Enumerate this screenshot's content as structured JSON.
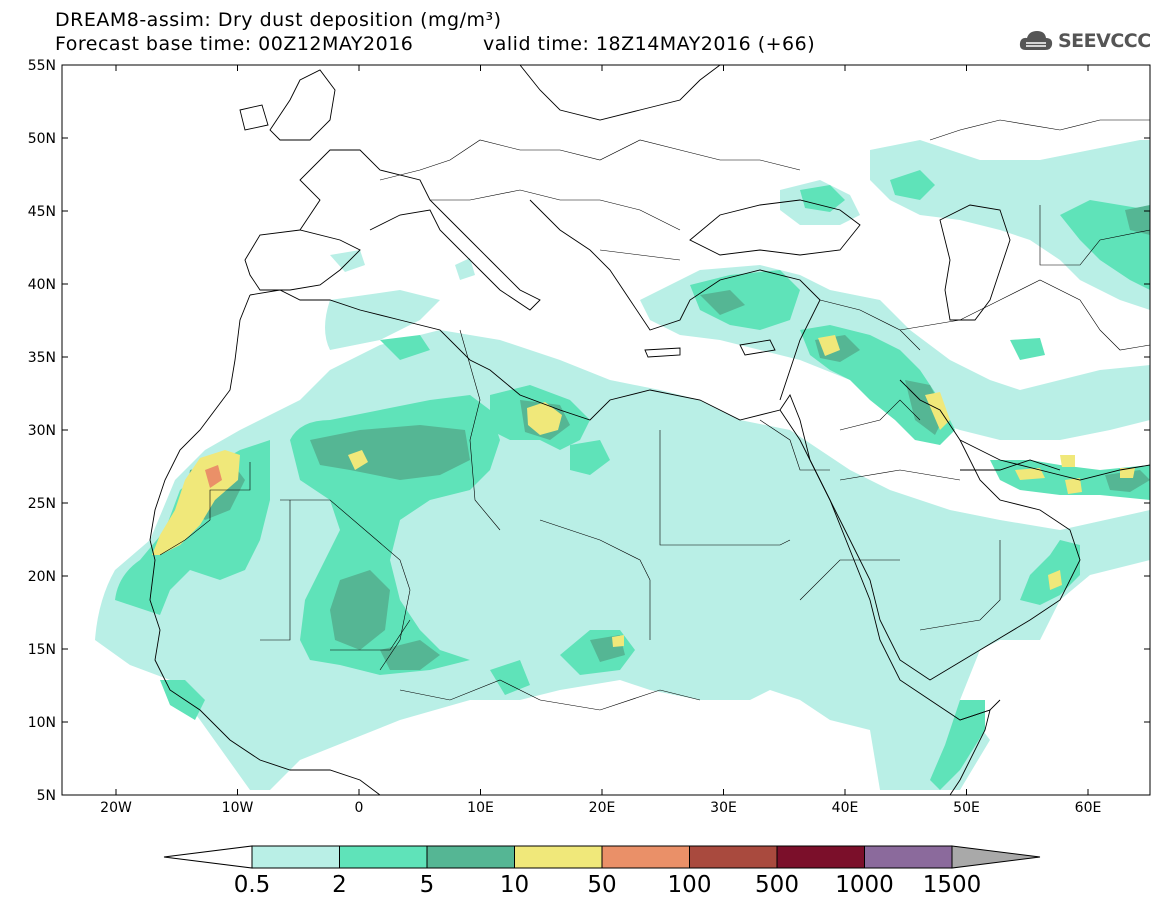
{
  "header": {
    "line1": "DREAM8-assim: Dry dust deposition (mg/m³)",
    "line2_left": "Forecast base time: 00Z12MAY2016",
    "line2_right": "valid time: 18Z14MAY2016 (+66)"
  },
  "logo": {
    "text": "SEEVCCC",
    "icon": "cloud-icon"
  },
  "map": {
    "lat_labels": [
      "55N",
      "50N",
      "45N",
      "40N",
      "35N",
      "30N",
      "25N",
      "20N",
      "15N",
      "10N",
      "5N"
    ],
    "lon_labels": [
      "20W",
      "10W",
      "0",
      "10E",
      "20E",
      "30E",
      "40E",
      "50E",
      "60E"
    ]
  },
  "colorbar": {
    "labels": [
      "0.5",
      "2",
      "5",
      "10",
      "50",
      "100",
      "500",
      "1000",
      "1500"
    ],
    "colors": [
      "#b9efe6",
      "#5fe3b9",
      "#55b694",
      "#f0e87a",
      "#ea9068",
      "#a94a3e",
      "#7b0f2a",
      "#8b6a9c",
      "#a9a9a9"
    ]
  }
}
